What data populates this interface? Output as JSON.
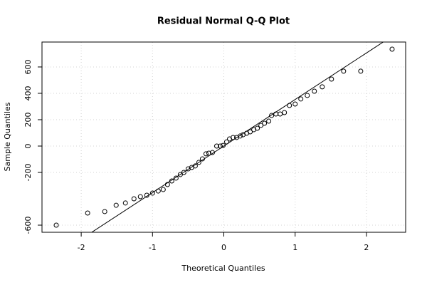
{
  "chart_data": {
    "type": "qq",
    "title": "Residual Normal Q-Q Plot",
    "x_label": "Theoretical Quantiles",
    "y_label": "Sample Quantiles",
    "xlim": [
      -2.55,
      2.55
    ],
    "ylim": [
      -654,
      789
    ],
    "xticks": [
      -2,
      -1,
      0,
      1,
      2
    ],
    "yticks": [
      -600,
      -200,
      0,
      200,
      400,
      600
    ],
    "grid": true,
    "color": "#000000",
    "reference_line": {
      "intercept": 0,
      "slope": 353
    },
    "x": [
      -2.35,
      -1.91,
      -1.67,
      -1.51,
      -1.38,
      -1.26,
      -1.17,
      -1.08,
      -1.0,
      -0.92,
      -0.85,
      -0.79,
      -0.73,
      -0.67,
      -0.61,
      -0.56,
      -0.5,
      -0.45,
      -0.4,
      -0.35,
      -0.3,
      -0.25,
      -0.21,
      -0.16,
      -0.1,
      -0.05,
      -0.01,
      0.04,
      0.08,
      0.13,
      0.18,
      0.23,
      0.27,
      0.32,
      0.37,
      0.42,
      0.47,
      0.52,
      0.57,
      0.63,
      0.67,
      0.73,
      0.79,
      0.85,
      0.92,
      1.0,
      1.08,
      1.17,
      1.27,
      1.38,
      1.51,
      1.68,
      1.92,
      2.36
    ],
    "values": [
      -600,
      -508,
      -497,
      -449,
      -432,
      -400,
      -384,
      -373,
      -357,
      -341,
      -330,
      -292,
      -265,
      -243,
      -216,
      -200,
      -173,
      -162,
      -151,
      -124,
      -97,
      -59,
      -54,
      -49,
      0,
      0,
      5,
      32,
      54,
      65,
      65,
      76,
      86,
      97,
      108,
      124,
      135,
      157,
      173,
      189,
      232,
      243,
      243,
      254,
      308,
      319,
      357,
      384,
      416,
      449,
      508,
      568,
      568,
      735
    ]
  }
}
